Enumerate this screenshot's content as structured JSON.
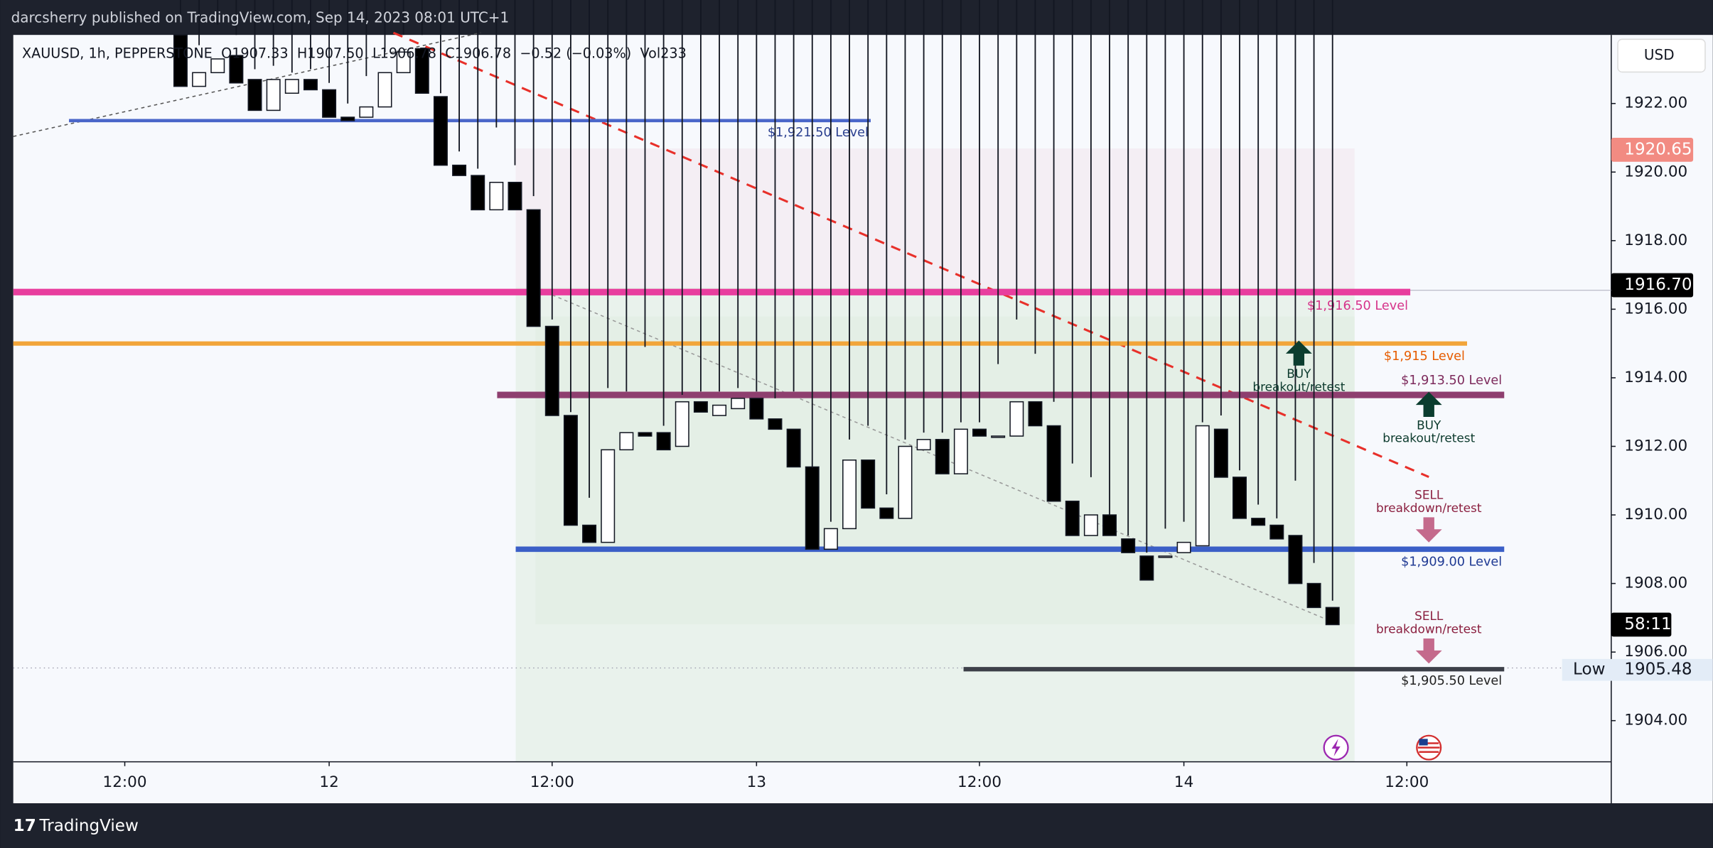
{
  "header": {
    "publisher": "darcsherry published on TradingView.com, Sep 14, 2023 08:01 UTC+1"
  },
  "legend": [
    "XAUUSD, 1h, PEPPERSTONE",
    "O1907.33",
    "H1907.50",
    "L1906.78",
    "C1906.78",
    "−0.52 (−0.03%)",
    "Vol233"
  ],
  "chart_data": {
    "type": "candlestick",
    "currency": "USD",
    "x": [
      -8,
      -7,
      -6,
      -5,
      -4,
      -3,
      -2,
      -1,
      0,
      1,
      2,
      3,
      4,
      5,
      6,
      7,
      8,
      9,
      10,
      11,
      12,
      13,
      14,
      15,
      16,
      17,
      18,
      19,
      20,
      21,
      22,
      23,
      24,
      25,
      26,
      27,
      28,
      29,
      30,
      31,
      32,
      33,
      34,
      35,
      36,
      37,
      38,
      39,
      40,
      41,
      42,
      43,
      44,
      45,
      46,
      47,
      48,
      49,
      50,
      51,
      52,
      53,
      54
    ],
    "open": [
      1924.0,
      1922.5,
      1922.9,
      1923.4,
      1922.7,
      1921.8,
      1922.3,
      1922.7,
      1922.4,
      1921.6,
      1921.6,
      1921.9,
      1922.9,
      1923.6,
      1922.2,
      1920.2,
      1919.9,
      1918.9,
      1919.7,
      1918.9,
      1915.5,
      1912.9,
      1909.7,
      1909.2,
      1911.9,
      1912.4,
      1912.4,
      1912.0,
      1913.3,
      1912.9,
      1913.1,
      1913.4,
      1912.8,
      1912.5,
      1911.4,
      1909.0,
      1909.6,
      1911.6,
      1910.2,
      1909.9,
      1911.9,
      1912.2,
      1911.2,
      1912.5,
      1912.3,
      1912.3,
      1913.3,
      1912.6,
      1910.4,
      1909.4,
      1910.0,
      1909.3,
      1908.8,
      1908.8,
      1908.9,
      1909.1,
      1912.5,
      1911.1,
      1909.9,
      1909.7,
      1909.4,
      1908.0,
      1907.3
    ],
    "high": [
      1924.5,
      1923.7,
      1924.3,
      1924.0,
      1923.0,
      1923.1,
      1922.9,
      1923.0,
      1922.6,
      1922.0,
      1922.8,
      1923.5,
      1924.0,
      1924.0,
      1922.3,
      1920.6,
      1920.1,
      1921.3,
      1920.2,
      1919.3,
      1915.7,
      1913.0,
      1910.5,
      1913.7,
      1913.6,
      1914.9,
      1912.6,
      1913.5,
      1913.6,
      1913.6,
      1913.7,
      1913.6,
      1913.4,
      1913.6,
      1911.4,
      1909.8,
      1912.2,
      1912.6,
      1910.6,
      1912.2,
      1912.4,
      1912.4,
      1912.7,
      1912.7,
      1914.4,
      1915.7,
      1914.7,
      1913.3,
      1911.5,
      1911.1,
      1910.0,
      1909.4,
      1908.9,
      1909.6,
      1909.8,
      1912.7,
      1912.9,
      1911.3,
      1910.3,
      1909.9,
      1911.0,
      1908.6,
      1907.5
    ],
    "low": {
      "label": "Low",
      "value": 1905.48
    },
    "close": [
      1922.5,
      1922.9,
      1923.3,
      1922.6,
      1921.8,
      1922.7,
      1922.7,
      1922.4,
      1921.6,
      1921.5,
      1921.9,
      1922.9,
      1923.5,
      1922.3,
      1920.2,
      1919.9,
      1918.9,
      1919.7,
      1918.9,
      1915.5,
      1912.9,
      1909.7,
      1909.2,
      1911.9,
      1912.4,
      1912.3,
      1911.9,
      1913.3,
      1913.0,
      1913.2,
      1913.4,
      1912.8,
      1912.5,
      1911.4,
      1909.0,
      1909.6,
      1911.6,
      1910.2,
      1909.9,
      1912.0,
      1912.2,
      1911.2,
      1912.5,
      1912.3,
      1912.3,
      1913.3,
      1912.6,
      1910.4,
      1909.4,
      1910.0,
      1909.4,
      1908.9,
      1908.1,
      1908.8,
      1909.2,
      1912.6,
      1911.1,
      1909.9,
      1909.7,
      1909.3,
      1908.0,
      1907.3,
      1906.8
    ],
    "xlim": [
      -17,
      69
    ],
    "xticks": [
      {
        "value": -11,
        "label": "12:00"
      },
      {
        "value": 0,
        "label": "12"
      },
      {
        "value": 12,
        "label": "12:00"
      },
      {
        "value": 23,
        "label": "13"
      },
      {
        "value": 35,
        "label": "12:00"
      },
      {
        "value": 46,
        "label": "14"
      },
      {
        "value": 58,
        "label": "12:00"
      }
    ],
    "ylim": [
      1902.8,
      1924.0
    ],
    "yticks": [
      {
        "value": 1904,
        "label": "1904.00"
      },
      {
        "value": 1906,
        "label": "1906.00"
      },
      {
        "value": 1908,
        "label": "1908.00"
      },
      {
        "value": 1910,
        "label": "1910.00"
      },
      {
        "value": 1912,
        "label": "1912.00"
      },
      {
        "value": 1914,
        "label": "1914.00"
      },
      {
        "value": 1916,
        "label": "1916.00"
      },
      {
        "value": 1918,
        "label": "1918.00"
      },
      {
        "value": 1920,
        "label": "1920.00"
      },
      {
        "value": 1922,
        "label": "1922.00"
      }
    ],
    "levels": [
      {
        "price": 1921.5,
        "label": "$1,921.50 Level",
        "color": "#4a66c9"
      },
      {
        "price": 1916.5,
        "label": "$1,916.50 Level",
        "color": "#e83e9e"
      },
      {
        "price": 1915,
        "label": "$1,915 Level",
        "color": "#f2a53a"
      },
      {
        "price": 1913.5,
        "label": "$1,913.50 Level",
        "color": "#8e3f6f"
      },
      {
        "price": 1909,
        "label": "$1,909.00 Level",
        "color": "#3b5fc7"
      },
      {
        "price": 1905.5,
        "label": "$1,905.50 Level",
        "color": "#3d4049"
      }
    ],
    "annotations": [
      {
        "text": "BUY",
        "subtext": "breakout/retest"
      },
      {
        "text": "BUY",
        "subtext": "breakout/retest"
      },
      {
        "text": "SELL",
        "subtext": "breakdown/retest"
      },
      {
        "text": "SELL",
        "subtext": "breakdown/retest"
      }
    ],
    "price_tags": [
      {
        "value": 1920.65,
        "label": "1920.65"
      },
      {
        "value": 1916.7,
        "label": "1916.70"
      }
    ],
    "countdown": "58:11"
  },
  "footer": {
    "brand": "TradingView"
  }
}
